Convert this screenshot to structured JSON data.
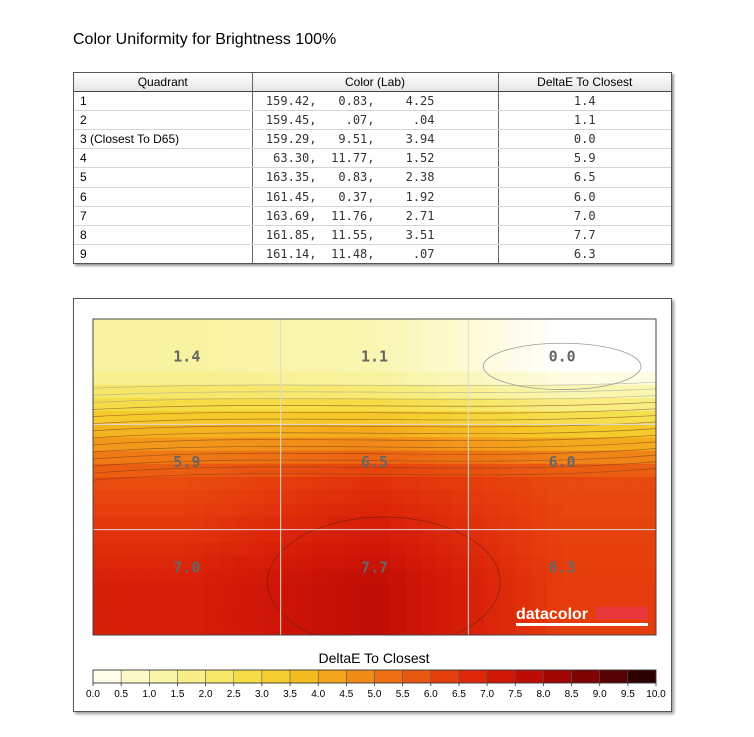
{
  "page": {
    "title": "Color Uniformity for Brightness 100%"
  },
  "table": {
    "headers": [
      "Quadrant",
      "Color (Lab)",
      "DeltaE To Closest"
    ],
    "rows": [
      {
        "quadrant": "1",
        "L": "159.42,",
        "a": "0.83,",
        "b": "4.25",
        "delta": "1.4"
      },
      {
        "quadrant": "2",
        "L": "159.45,",
        "a": ".07,",
        "b": ".04",
        "delta": "1.1"
      },
      {
        "quadrant": "3 (Closest To D65)",
        "L": "159.29,",
        "a": "9.51,",
        "b": "3.94",
        "delta": "0.0"
      },
      {
        "quadrant": "4",
        "L": "63.30,",
        "a": "11.77,",
        "b": "1.52",
        "delta": "5.9"
      },
      {
        "quadrant": "5",
        "L": "163.35,",
        "a": "0.83,",
        "b": "2.38",
        "delta": "6.5"
      },
      {
        "quadrant": "6",
        "L": "161.45,",
        "a": "0.37,",
        "b": "1.92",
        "delta": "6.0"
      },
      {
        "quadrant": "7",
        "L": "163.69,",
        "a": "11.76,",
        "b": "2.71",
        "delta": "7.0"
      },
      {
        "quadrant": "8",
        "L": "161.85,",
        "a": "11.55,",
        "b": "3.51",
        "delta": "7.7"
      },
      {
        "quadrant": "9",
        "L": "161.14,",
        "a": "11.48,",
        "b": ".07",
        "delta": "6.3"
      }
    ]
  },
  "chart_data": {
    "type": "heatmap",
    "grid": [
      [
        1.4,
        1.1,
        0.0
      ],
      [
        5.9,
        6.5,
        6.0
      ],
      [
        7.0,
        7.7,
        6.3
      ]
    ],
    "cell_labels": [
      [
        "1.4",
        "1.1",
        "0.0"
      ],
      [
        "5.9",
        "6.5",
        "6.0"
      ],
      [
        "7.0",
        "7.7",
        "6.3"
      ]
    ],
    "colorbar": {
      "title": "DeltaE To Closest",
      "ticks": [
        "0.0",
        "0.5",
        "1.0",
        "1.5",
        "2.0",
        "2.5",
        "3.0",
        "3.5",
        "4.0",
        "4.5",
        "5.0",
        "5.5",
        "6.0",
        "6.5",
        "7.0",
        "7.5",
        "8.0",
        "8.5",
        "9.0",
        "9.5",
        "10.0"
      ],
      "colors": [
        "#ffffff",
        "#fdfbd8",
        "#faf7b6",
        "#f8f29a",
        "#f7eb7a",
        "#f6e256",
        "#f5d73a",
        "#f5c626",
        "#f4b11e",
        "#f2981a",
        "#ef7d15",
        "#ec6311",
        "#e84a0e",
        "#e2330b",
        "#d71f08",
        "#c81106",
        "#b10805",
        "#930404",
        "#6c0203",
        "#410101",
        "#1a0000"
      ],
      "range": [
        0,
        10
      ]
    },
    "gridlines": true,
    "watermark": "datacolor",
    "watermark_color": "#e8383d"
  }
}
